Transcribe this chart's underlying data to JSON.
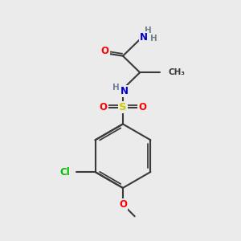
{
  "bg_color": "#ebebeb",
  "bond_color": "#3a3a3a",
  "bond_width": 1.5,
  "atom_colors": {
    "O": "#ff0000",
    "N": "#0000cd",
    "S": "#cccc00",
    "Cl": "#00bb00",
    "C": "#3a3a3a",
    "H": "#708090"
  },
  "font_size_atom": 8.5,
  "font_size_small": 7.0
}
